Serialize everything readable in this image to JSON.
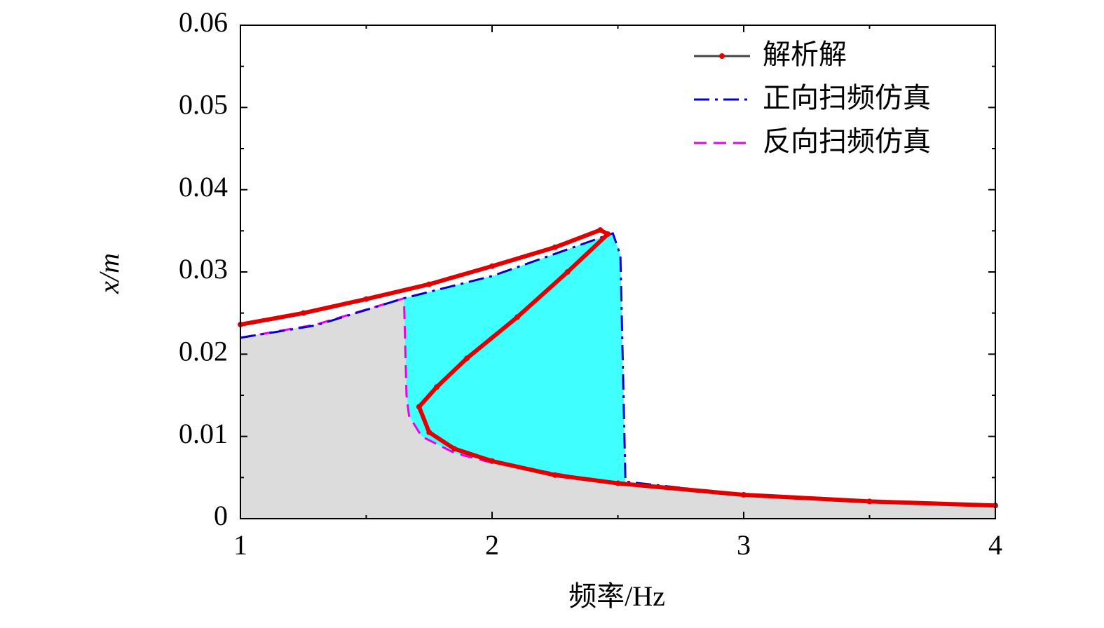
{
  "chart_data": {
    "type": "line",
    "xlabel": "频率/Hz",
    "ylabel": "x/m",
    "xlim": [
      1,
      4
    ],
    "ylim": [
      0,
      0.06
    ],
    "xticks": [
      1,
      2,
      3,
      4
    ],
    "yticks": [
      0,
      0.01,
      0.02,
      0.03,
      0.04,
      0.05,
      0.06
    ],
    "legend": "upper right",
    "series": [
      {
        "name": "解析解",
        "color": "#e00000",
        "line_color": "#444444",
        "markers": true,
        "x": [
          1,
          1.25,
          1.5,
          1.75,
          2.0,
          2.25,
          2.43,
          2.46,
          2.3,
          2.1,
          1.9,
          1.78,
          1.71,
          1.75,
          1.85,
          2.0,
          2.25,
          2.5,
          3.0,
          3.5,
          4.0
        ],
        "values": [
          0.0236,
          0.025,
          0.0267,
          0.0285,
          0.0307,
          0.033,
          0.0351,
          0.0346,
          0.03,
          0.0245,
          0.0195,
          0.016,
          0.0136,
          0.0105,
          0.0085,
          0.007,
          0.0053,
          0.0043,
          0.0029,
          0.0021,
          0.0016
        ]
      },
      {
        "name": "正向扫频仿真",
        "color": "#0000cc",
        "dash": "dashdot",
        "fill": "#40ffff",
        "x": [
          1,
          1.3,
          1.65,
          2.0,
          2.25,
          2.48,
          2.51,
          2.53,
          3.0,
          3.5,
          4.0
        ],
        "values": [
          0.022,
          0.0235,
          0.0268,
          0.0295,
          0.0322,
          0.0347,
          0.032,
          0.0045,
          0.0029,
          0.0021,
          0.0016
        ]
      },
      {
        "name": "反向扫频仿真",
        "color": "#ee00ee",
        "dash": "dashed",
        "fill": "#dcdcdc",
        "x": [
          1,
          1.3,
          1.65,
          1.66,
          1.67,
          1.72,
          1.85,
          2.0,
          2.5,
          3.0,
          3.5,
          4.0
        ],
        "values": [
          0.022,
          0.0236,
          0.0268,
          0.015,
          0.0125,
          0.01,
          0.008,
          0.0068,
          0.0042,
          0.0028,
          0.002,
          0.0015
        ]
      }
    ]
  }
}
